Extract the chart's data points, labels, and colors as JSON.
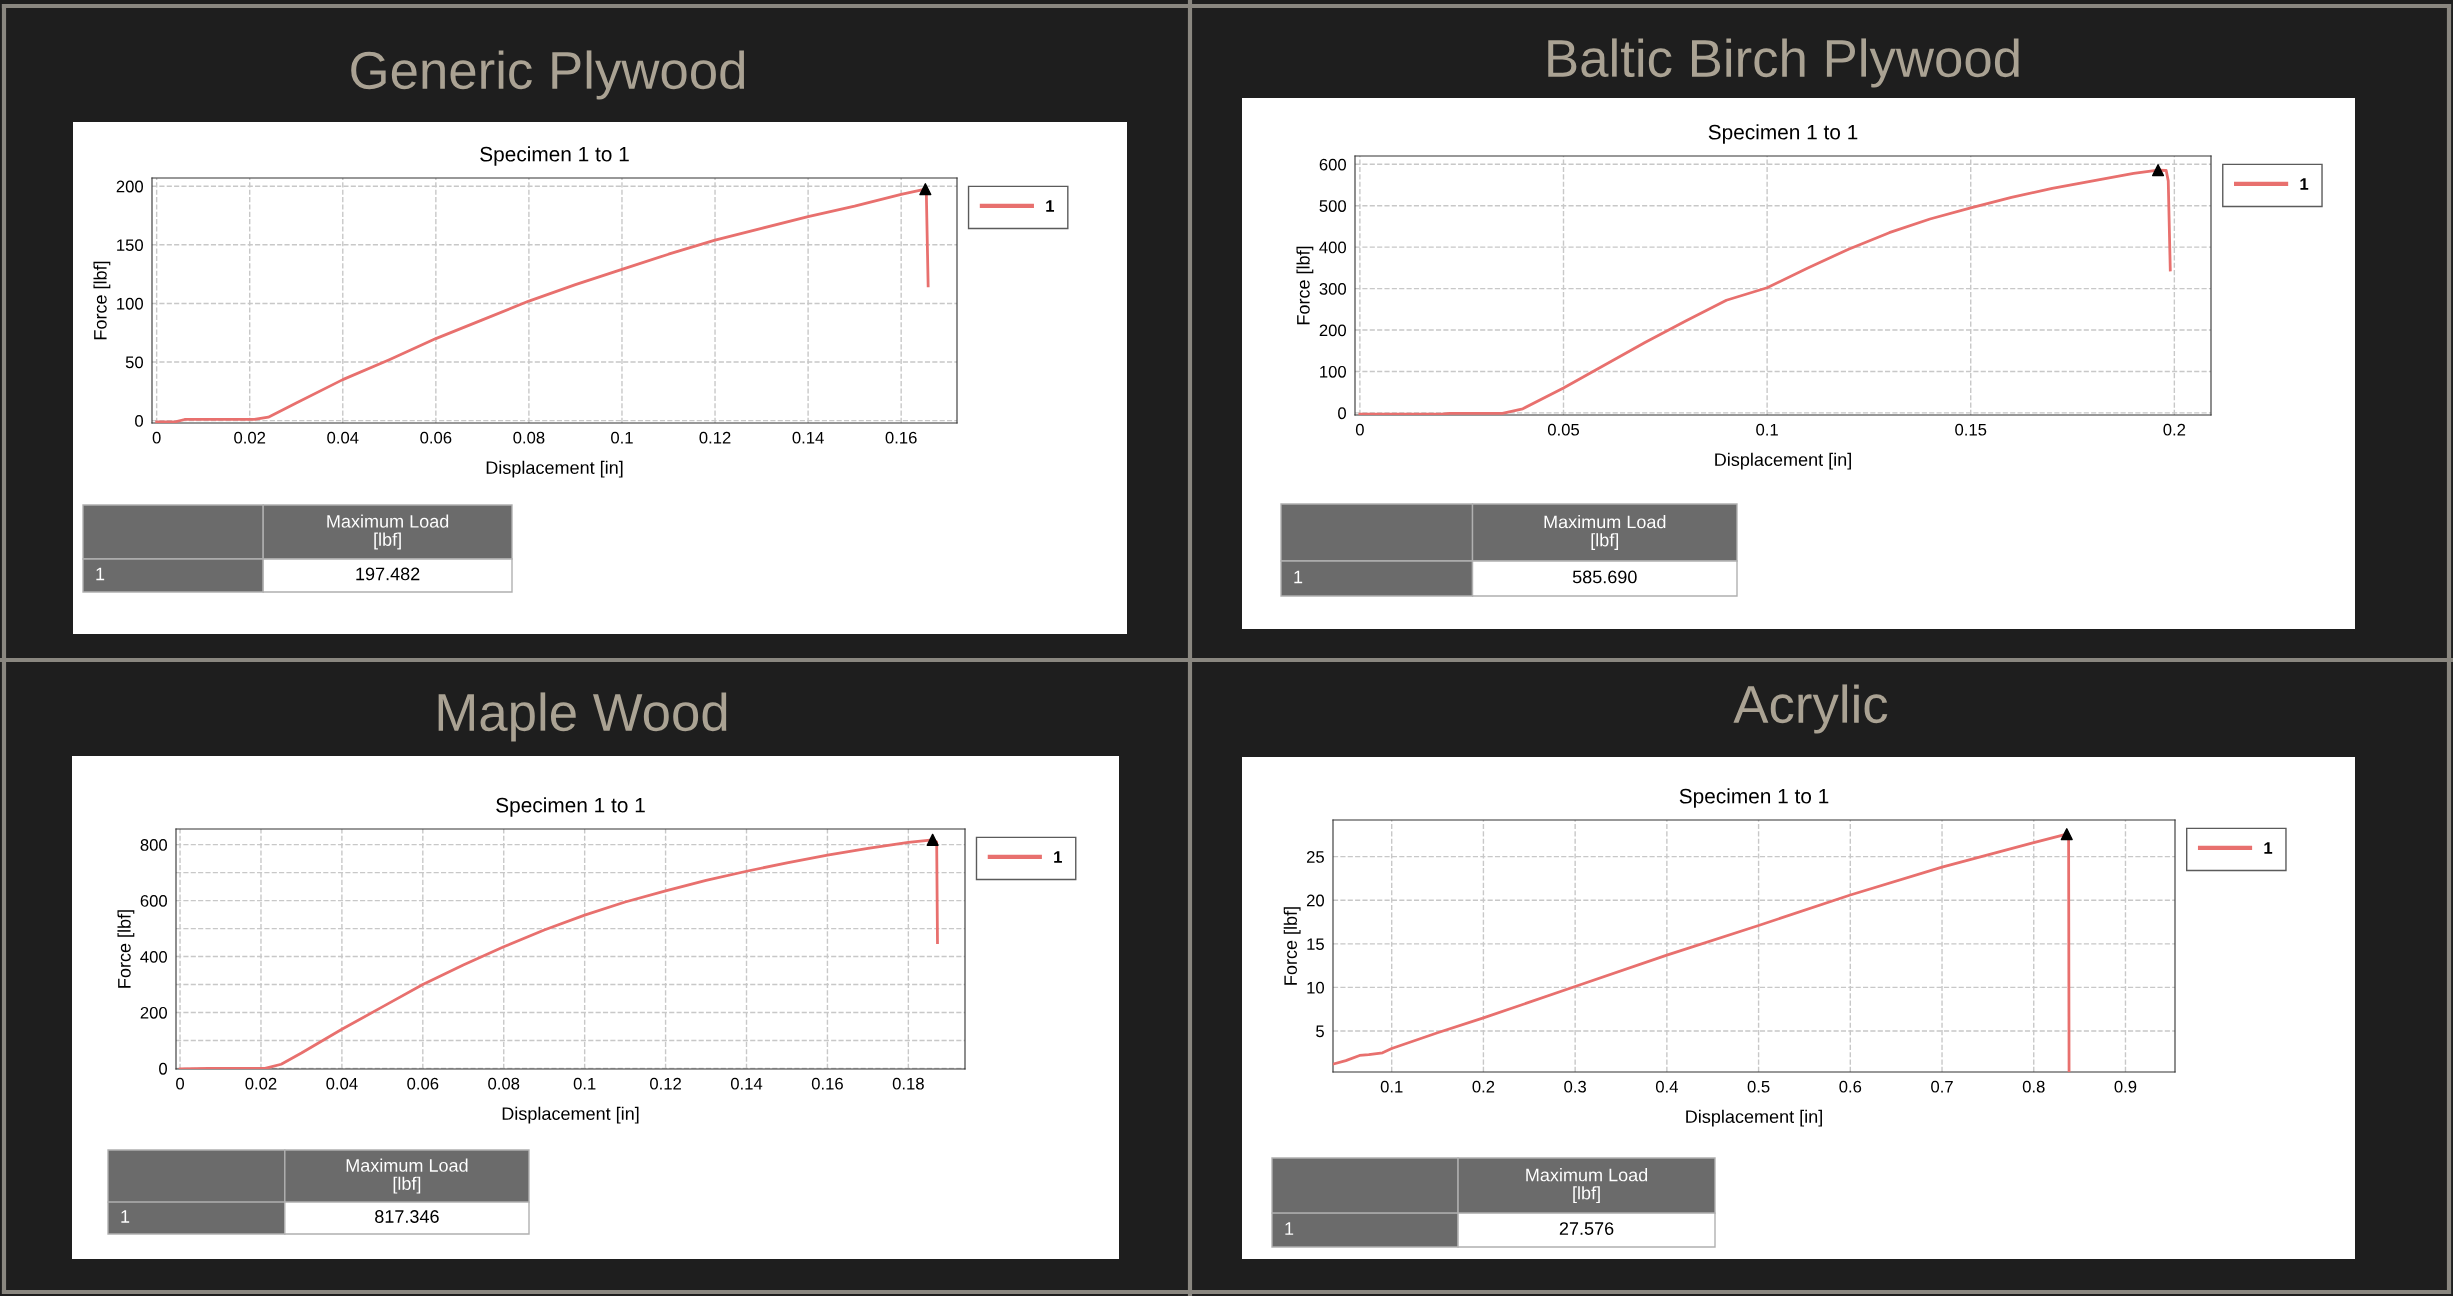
{
  "chart_data": [
    {
      "type": "line",
      "title": "Generic Plywood",
      "subtitle": "Specimen 1 to 1",
      "xlabel": "Displacement [in]",
      "ylabel": "Force [lbf]",
      "xlim": [
        -0.001,
        0.172
      ],
      "xticks": [
        0,
        0.02,
        0.04,
        0.06,
        0.08,
        0.1,
        0.12,
        0.14,
        0.16
      ],
      "ylim": [
        -2,
        207
      ],
      "yticks": [
        0,
        50,
        100,
        150,
        200
      ],
      "grid": true,
      "legend": "top right",
      "series": [
        {
          "name": "1",
          "color": "#e8706e",
          "x": [
            0,
            0.004,
            0.006,
            0.021,
            0.024,
            0.03,
            0.04,
            0.05,
            0.06,
            0.07,
            0.08,
            0.09,
            0.1,
            0.11,
            0.12,
            0.13,
            0.14,
            0.15,
            0.16,
            0.1652,
            0.1654,
            0.1658
          ],
          "values": [
            -1,
            -1,
            1,
            1,
            3,
            15,
            35,
            52,
            70,
            86,
            102,
            116,
            129,
            142,
            154,
            164,
            174,
            183,
            193,
            197.482,
            196,
            115
          ]
        },
        {
          "type": "scatter",
          "marker": "triangle",
          "color": "#000000",
          "x": [
            0.1652
          ],
          "values": [
            197.482
          ]
        }
      ],
      "annotations": [
        "Maximum Load\n[lbf]",
        "1",
        "197.482"
      ]
    },
    {
      "type": "line",
      "title": "Baltic Birch Plywood",
      "subtitle": "Specimen 1 to 1",
      "xlabel": "Displacement [in]",
      "ylabel": "Force [lbf]",
      "xlim": [
        -0.0012,
        0.209
      ],
      "xticks": [
        0,
        0.05,
        0.1,
        0.15,
        0.2
      ],
      "ylim": [
        -5,
        620
      ],
      "yticks": [
        0,
        100,
        200,
        300,
        400,
        500,
        600
      ],
      "grid": true,
      "legend": "top right",
      "series": [
        {
          "name": "1",
          "color": "#e8706e",
          "x": [
            0,
            0.02,
            0.022,
            0.035,
            0.04,
            0.05,
            0.06,
            0.07,
            0.08,
            0.09,
            0.1,
            0.11,
            0.12,
            0.13,
            0.14,
            0.15,
            0.16,
            0.17,
            0.18,
            0.19,
            0.196,
            0.198,
            0.1985,
            0.199
          ],
          "values": [
            -3,
            -3,
            -1,
            -1,
            10,
            60,
            115,
            170,
            222,
            272,
            302,
            350,
            395,
            435,
            468,
            495,
            520,
            542,
            560,
            578,
            585.69,
            585,
            560,
            345
          ]
        },
        {
          "type": "scatter",
          "marker": "triangle",
          "color": "#000000",
          "x": [
            0.196
          ],
          "values": [
            585.69
          ]
        }
      ],
      "annotations": [
        "Maximum Load\n[lbf]",
        "1",
        "585.690"
      ]
    },
    {
      "type": "line",
      "title": "Maple Wood",
      "subtitle": "Specimen 1 to 1",
      "xlabel": "Displacement [in]",
      "ylabel": "Force [lbf]",
      "xlim": [
        -0.001,
        0.194
      ],
      "xticks": [
        0,
        0.02,
        0.04,
        0.06,
        0.08,
        0.1,
        0.12,
        0.14,
        0.16,
        0.18
      ],
      "ylim": [
        -2,
        856
      ],
      "yticks": [
        0,
        {
          "value": 100,
          "label": null
        },
        200,
        {
          "value": 300,
          "label": null
        },
        400,
        {
          "value": 500,
          "label": null
        },
        600,
        {
          "value": 700,
          "label": null
        },
        800
      ],
      "grid": true,
      "legend": "top right",
      "series": [
        {
          "name": "1",
          "color": "#e8706e",
          "x": [
            0,
            0.007,
            0.021,
            0.025,
            0.03,
            0.04,
            0.05,
            0.06,
            0.07,
            0.08,
            0.09,
            0.1,
            0.11,
            0.12,
            0.13,
            0.14,
            0.15,
            0.16,
            0.17,
            0.18,
            0.186,
            0.187,
            0.1872
          ],
          "values": [
            -2,
            0,
            0,
            15,
            55,
            140,
            220,
            300,
            370,
            435,
            495,
            548,
            595,
            635,
            672,
            705,
            735,
            763,
            787,
            808,
            817.346,
            810,
            450
          ]
        },
        {
          "type": "scatter",
          "marker": "triangle",
          "color": "#000000",
          "x": [
            0.186
          ],
          "values": [
            817.346
          ]
        }
      ],
      "annotations": [
        "Maximum Load\n[lbf]",
        "1",
        "817.346"
      ]
    },
    {
      "type": "line",
      "title": "Acrylic",
      "subtitle": "Specimen 1 to 1",
      "xlabel": "Displacement [in]",
      "ylabel": "Force [lbf]",
      "xlim": [
        0.036,
        0.954
      ],
      "xticks": [
        0.1,
        0.2,
        0.3,
        0.4,
        0.5,
        0.6,
        0.7,
        0.8,
        0.9
      ],
      "ylim": [
        0.3,
        29.2
      ],
      "yticks": [
        5,
        10,
        15,
        20,
        25
      ],
      "grid": true,
      "legend": "top right",
      "series": [
        {
          "name": "1",
          "color": "#e8706e",
          "x": [
            0.036,
            0.05,
            0.065,
            0.075,
            0.09,
            0.1,
            0.15,
            0.2,
            0.3,
            0.4,
            0.5,
            0.6,
            0.7,
            0.8,
            0.836,
            0.838,
            0.8385
          ],
          "values": [
            1.2,
            1.6,
            2.2,
            2.3,
            2.5,
            3.0,
            4.8,
            6.5,
            10.1,
            13.7,
            17.1,
            20.6,
            23.8,
            26.6,
            27.576,
            27.3,
            0.3
          ]
        },
        {
          "type": "scatter",
          "marker": "triangle",
          "color": "#000000",
          "x": [
            0.836
          ],
          "values": [
            27.576
          ]
        }
      ],
      "annotations": [
        "Maximum Load\n[lbf]",
        "1",
        "27.576"
      ]
    }
  ]
}
